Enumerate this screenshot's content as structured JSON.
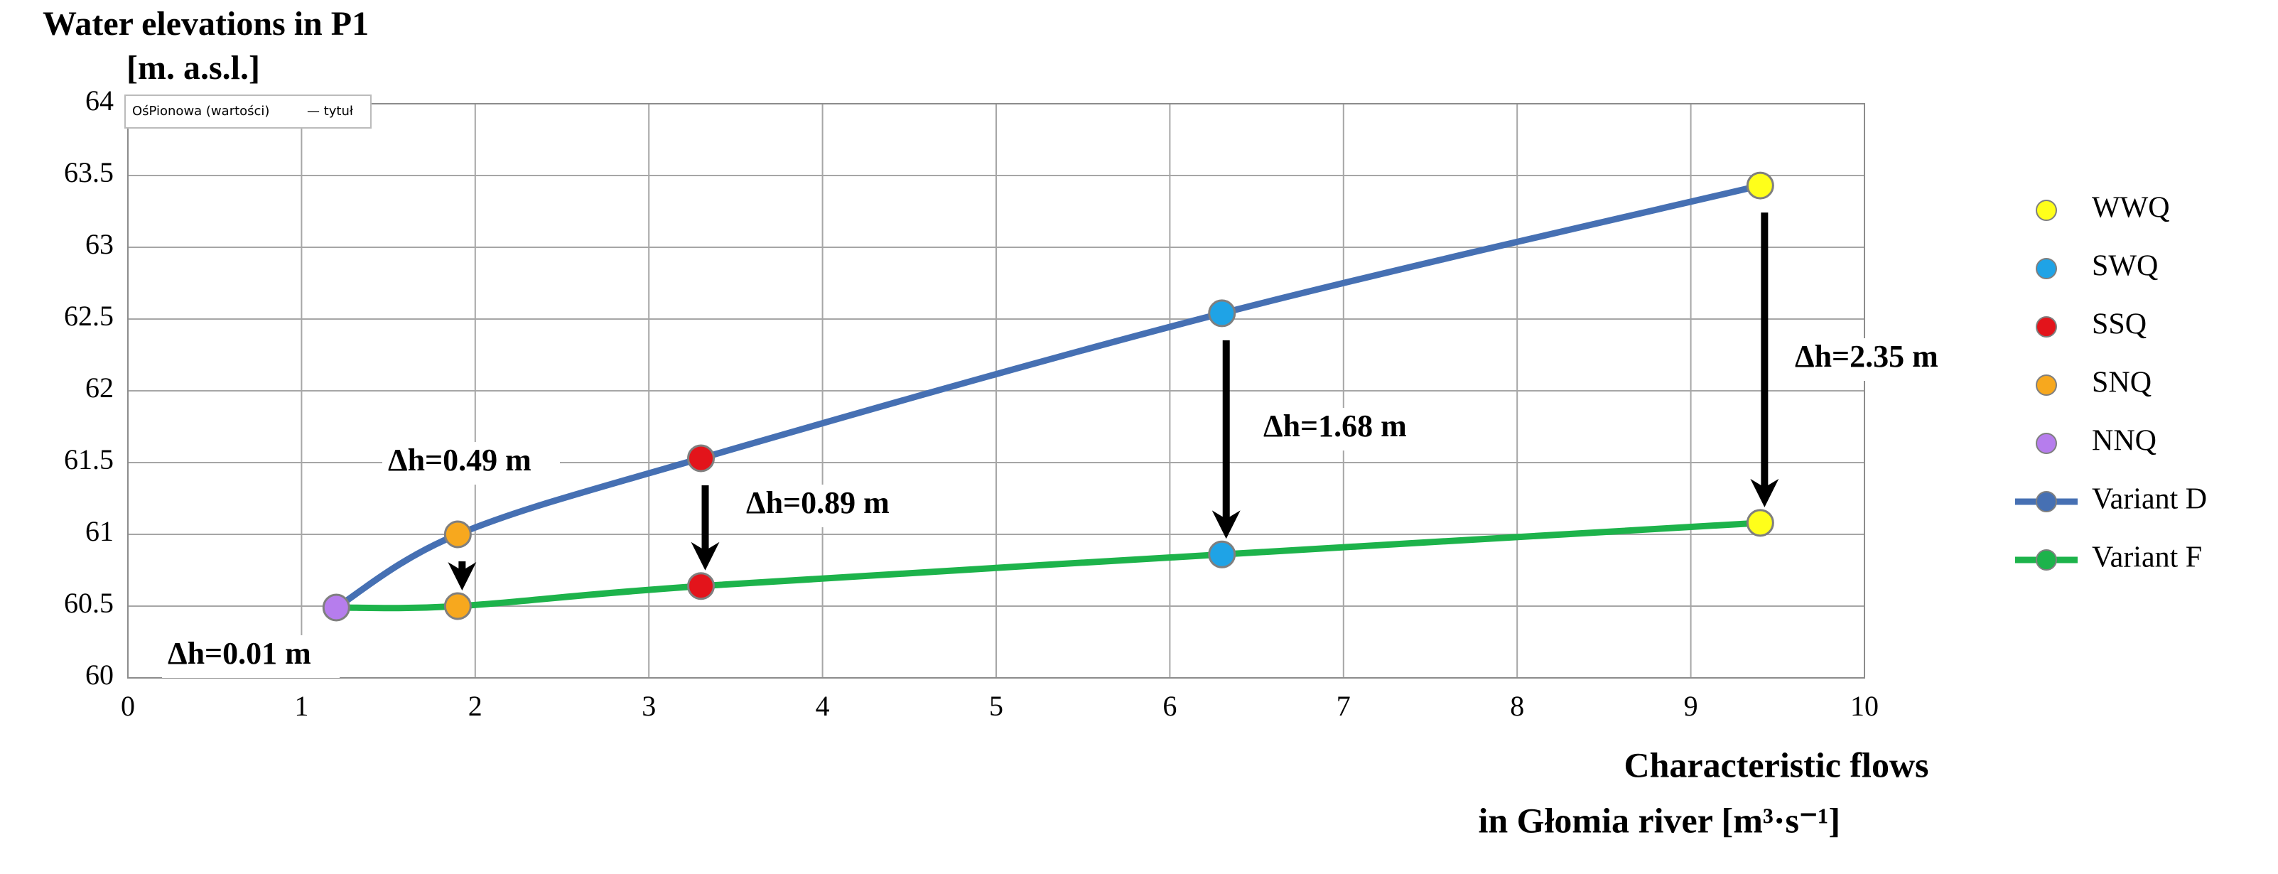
{
  "chart_data": {
    "type": "line",
    "title": "Water elevations in P1",
    "y_label": "[m. a.s.l.]",
    "x_label": [
      "Characteristic flows",
      "in Głomia river  [m³·s⁻¹]"
    ],
    "tooltip": [
      "OśPionowa (wartości)",
      "— tytuł"
    ],
    "xlim": [
      0,
      10
    ],
    "xticks": [
      0,
      1,
      2,
      3,
      4,
      5,
      6,
      7,
      8,
      9,
      10
    ],
    "ylim": [
      60,
      64
    ],
    "yticks": [
      60,
      60.5,
      61,
      61.5,
      62,
      62.5,
      63,
      63.5,
      64
    ],
    "grid": true,
    "series": [
      {
        "name": "WWQ",
        "mode": "markers",
        "color": "#ffff1a",
        "x": [
          9.4,
          9.4
        ],
        "values": [
          63.43,
          61.08
        ]
      },
      {
        "name": "SWQ",
        "mode": "markers",
        "color": "#1fa3e6",
        "x": [
          6.3,
          6.3
        ],
        "values": [
          62.54,
          60.86
        ]
      },
      {
        "name": "SSQ",
        "mode": "markers",
        "color": "#e3141b",
        "x": [
          3.3,
          3.3
        ],
        "values": [
          61.53,
          60.64
        ]
      },
      {
        "name": "SNQ",
        "mode": "markers",
        "color": "#f7a81e",
        "x": [
          1.9,
          1.9
        ],
        "values": [
          61.0,
          60.5
        ]
      },
      {
        "name": "NNQ",
        "mode": "markers",
        "color": "#b67ded",
        "x": [
          1.2
        ],
        "values": [
          60.49
        ]
      },
      {
        "name": "Variant D",
        "mode": "lines",
        "color": "#4670b3",
        "x": [
          1.2,
          1.9,
          3.3,
          6.3,
          9.4
        ],
        "values": [
          60.49,
          61.0,
          61.53,
          62.54,
          63.43
        ]
      },
      {
        "name": "Variant F",
        "mode": "lines",
        "color": "#1db34b",
        "x": [
          1.2,
          1.9,
          3.3,
          6.3,
          9.4
        ],
        "values": [
          60.49,
          60.5,
          60.64,
          60.86,
          61.08
        ]
      }
    ],
    "annotations": [
      "Δh=0.01 m",
      "Δh=0.49 m",
      "Δh=0.89 m",
      "Δh=1.68 m",
      "Δh=2.35 m"
    ]
  }
}
